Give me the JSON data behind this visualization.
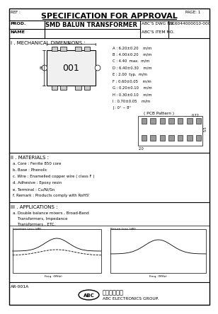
{
  "title": "SPECIFICATION FOR APPROVAL",
  "page": "PAGE: 1",
  "ref": "REF :",
  "prod_label": "PROD.",
  "name_label": "NAME",
  "prod_name": "SMD BALUN TRANSFORMER",
  "abcs_dwg_no": "ABC'S DWG NO.",
  "abcs_item_no": "ABC'S ITEM NO.",
  "dwg_no_val": "SC6044000010-000",
  "section1": "I . MECHANICAL DIMENSIONS :",
  "dim_label": "001",
  "dim_A": "A : 6.20±0.20    m/m",
  "dim_B": "B : 4.00±0.20    m/m",
  "dim_C": "C : 4.40  max.  m/m",
  "dim_D": "D : 6.40±0.30    m/m",
  "dim_E": "E : 2.00  typ.  m/m",
  "dim_F": "F : 0.60±0.05    m/m",
  "dim_G": "G : 0.20±0.10    m/m",
  "dim_H": "H : 0.30±0.10    m/m",
  "dim_I": "I : 0.70±0.05    m/m",
  "dim_J": "J : 0° ~ 8°",
  "pcb_note": "( PCB Pattern )",
  "section2": "II . MATERIALS :",
  "mat_a": "a. Core : Ferrite 850 core",
  "mat_b": "b. Base : Phenolic",
  "mat_c": "c. Wire : Enamelled copper wire ( class F )",
  "mat_d": "d. Adhesive : Epoxy resin",
  "mat_e": "e. Terminal : Cu/Ni/Sn",
  "mat_f": "f. Remark : Products comply with RoHS'",
  "section3": "III . APPLICATIONS :",
  "app_a": "a. Double balance mixers , Broad-Band",
  "app_b": "    Transformers, Impedance",
  "app_c": "    Transformers , ETC.",
  "footer_left": "AR-001A",
  "footer_company_cn": "千加電子集團",
  "footer_company_en": "ABC ELECTRONICS GROUP.",
  "bg_color": "#ffffff",
  "border_color": "#000000",
  "text_color": "#000000"
}
